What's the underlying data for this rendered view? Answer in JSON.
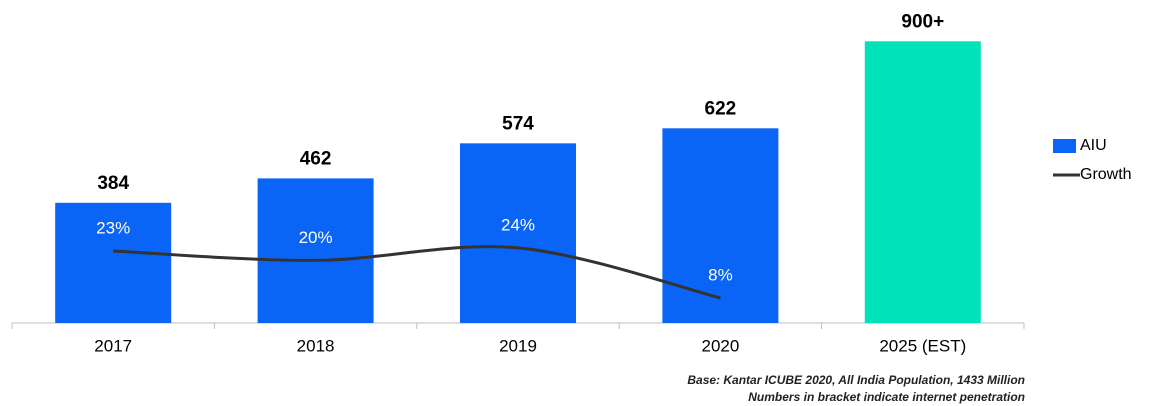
{
  "chart_data": {
    "type": "bar+line",
    "categories": [
      "2017",
      "2018",
      "2019",
      "2020",
      "2025 (EST)"
    ],
    "series": [
      {
        "name": "AIU",
        "type": "bar",
        "color": "#0a64f5",
        "colors": [
          "#0a64f5",
          "#0a64f5",
          "#0a64f5",
          "#0a64f5",
          "#00e2b9"
        ],
        "values": [
          384,
          462,
          574,
          622,
          900
        ],
        "value_labels": [
          "384",
          "462",
          "574",
          "622",
          "900+"
        ]
      },
      {
        "name": "Growth",
        "type": "line",
        "axis": "y2",
        "color": "#333333",
        "values": [
          23,
          20,
          24,
          8,
          null
        ],
        "value_labels": [
          "23%",
          "20%",
          "24%",
          "8%",
          null
        ]
      }
    ],
    "ylim": [
      0,
      1000
    ],
    "y2lim": [
      0,
      100
    ],
    "legend": "right",
    "notes": [
      "Base: Kantar ICUBE 2020, All India Population, 1433 Million",
      "Numbers in bracket indicate internet penetration"
    ]
  }
}
